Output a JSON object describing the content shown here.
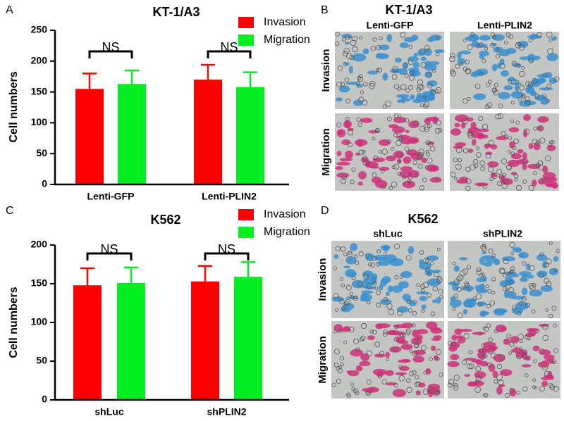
{
  "chart_data": [
    {
      "type": "bar",
      "label": "A",
      "title": "KT-1/A3",
      "ylabel": "Cell numbers",
      "categories": [
        "Lenti-GFP",
        "Lenti-PLIN2"
      ],
      "series": [
        {
          "name": "Invasion",
          "color": "#ff0000",
          "values": [
            155,
            170
          ],
          "errors": [
            25,
            24
          ]
        },
        {
          "name": "Migration",
          "color": "#00ee22",
          "values": [
            163,
            158
          ],
          "errors": [
            22,
            24
          ]
        }
      ],
      "annotations": [
        "NS",
        "NS"
      ],
      "ylim": [
        0,
        250
      ],
      "yticks": [
        0,
        50,
        100,
        150,
        200,
        250
      ]
    },
    {
      "type": "bar",
      "label": "C",
      "title": "K562",
      "ylabel": "Cell numbers",
      "categories": [
        "shLuc",
        "shPLIN2"
      ],
      "series": [
        {
          "name": "Invasion",
          "color": "#ff0000",
          "values": [
            148,
            153
          ],
          "errors": [
            22,
            20
          ]
        },
        {
          "name": "Migration",
          "color": "#00ee22",
          "values": [
            151,
            159
          ],
          "errors": [
            20,
            19
          ]
        }
      ],
      "annotations": [
        "NS",
        "NS"
      ],
      "ylim": [
        0,
        200
      ],
      "yticks": [
        0,
        50,
        100,
        150,
        200
      ]
    }
  ],
  "image_panels": [
    {
      "label": "B",
      "title": "KT-1/A3",
      "columns": [
        "Lenti-GFP",
        "Lenti-PLIN2"
      ],
      "rows": [
        "Invasion",
        "Migration"
      ]
    },
    {
      "label": "D",
      "title": "K562",
      "columns": [
        "shLuc",
        "shPLIN2"
      ],
      "rows": [
        "Invasion",
        "Migration"
      ]
    }
  ]
}
